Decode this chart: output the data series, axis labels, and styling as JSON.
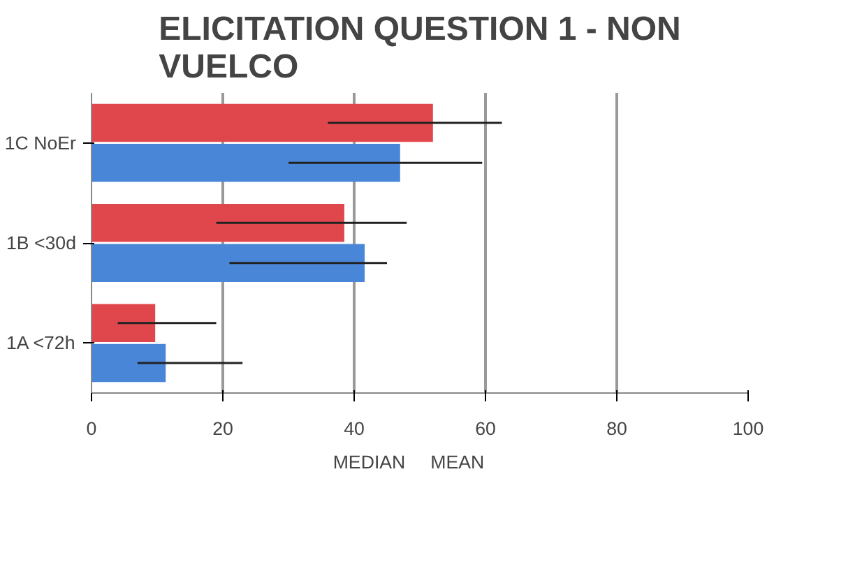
{
  "chart_data": {
    "type": "bar",
    "orientation": "horizontal",
    "title": "ELICITATION QUESTION 1 - NON VUELCO",
    "categories": [
      "1C NoEr",
      "1B <30d",
      "1A <72h"
    ],
    "series": [
      {
        "name": "MEDIAN",
        "color": "#e0474c",
        "values": [
          52,
          38.5,
          9.7
        ],
        "errors": [
          [
            36,
            62.5
          ],
          [
            19,
            48
          ],
          [
            4,
            19
          ]
        ]
      },
      {
        "name": "MEAN",
        "color": "#4a86d8",
        "values": [
          47,
          41.6,
          11.3
        ],
        "errors": [
          [
            30,
            59.5
          ],
          [
            21,
            45
          ],
          [
            7,
            23
          ]
        ]
      }
    ],
    "xlim": [
      0,
      100
    ],
    "xticks": [
      0,
      20,
      40,
      60,
      80,
      100
    ],
    "grid": "x",
    "legend": "bottom"
  }
}
